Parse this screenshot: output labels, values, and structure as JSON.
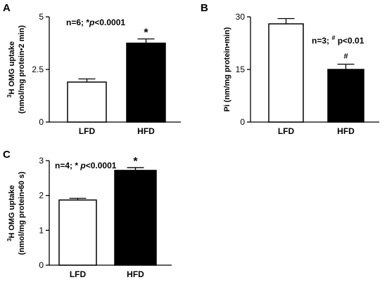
{
  "chart_data": [
    {
      "panel": "A",
      "type": "bar",
      "categories": [
        "LFD",
        "HFD"
      ],
      "values": [
        1.9,
        3.75
      ],
      "errors": [
        0.15,
        0.2
      ],
      "fills": [
        "#ffffff",
        "#000000"
      ],
      "ylabel_parts": [
        "3",
        "H OMG uptake"
      ],
      "ylabel_line2": "(nmol/mg protein•2 min)",
      "ylim": [
        0,
        5
      ],
      "yticks": [
        "0",
        "2.5",
        "5"
      ],
      "annotation": {
        "n": "n=6; *",
        "p": "p",
        "rest": "<0.0001"
      },
      "markers": [
        "",
        "*"
      ]
    },
    {
      "panel": "B",
      "type": "bar",
      "categories": [
        "LFD",
        "HFD"
      ],
      "values": [
        28,
        15
      ],
      "errors": [
        1.5,
        1.5
      ],
      "fills": [
        "#ffffff",
        "#000000"
      ],
      "ylabel": "Pi (nm/mg protein•min)",
      "ylim": [
        0,
        30
      ],
      "yticks": [
        "0",
        "15",
        "30"
      ],
      "annotation": {
        "n": "n=3; ",
        "sup": "#",
        "rest": " p<0.01"
      },
      "markers": [
        "",
        "#"
      ]
    },
    {
      "panel": "C",
      "type": "bar",
      "categories": [
        "LFD",
        "HFD"
      ],
      "values": [
        1.87,
        2.72
      ],
      "errors": [
        0.05,
        0.08
      ],
      "fills": [
        "#ffffff",
        "#000000"
      ],
      "ylabel_parts": [
        "3",
        "H OMG uptake"
      ],
      "ylabel_line2": "(nmol/mg protein•60 s)",
      "ylim": [
        0,
        3
      ],
      "yticks": [
        "0",
        "1",
        "2",
        "3"
      ],
      "annotation": {
        "n": "n=4; * ",
        "p": "p",
        "rest": "<0.0001"
      },
      "markers": [
        "",
        "*"
      ]
    }
  ]
}
